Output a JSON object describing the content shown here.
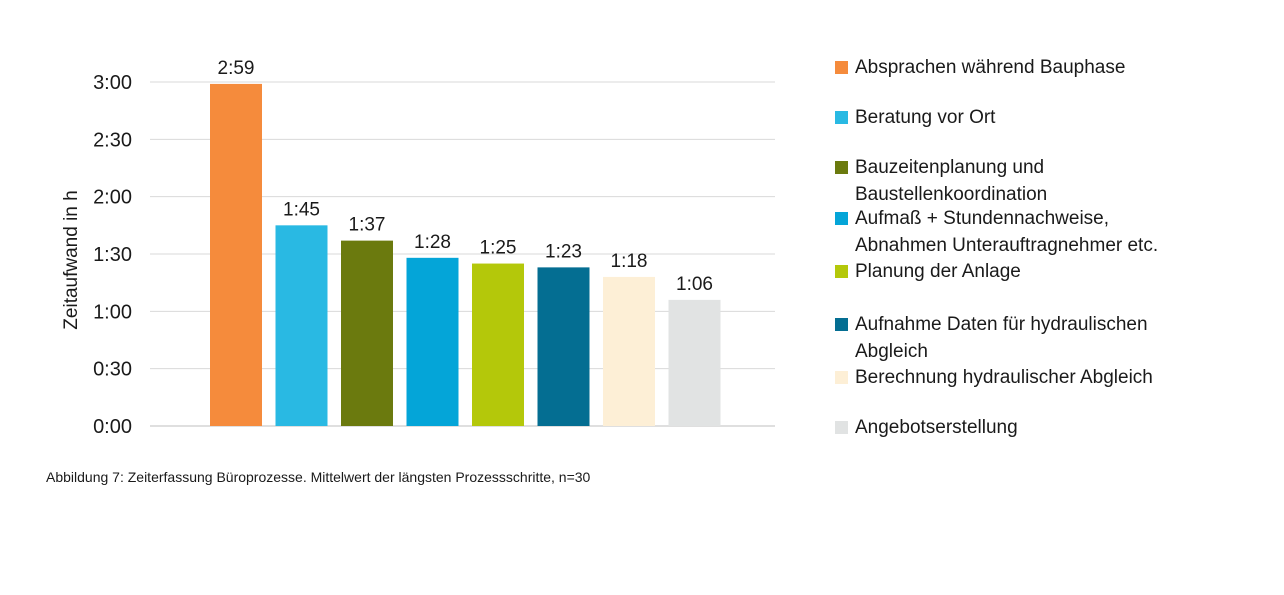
{
  "chart_data": {
    "type": "bar",
    "title": "",
    "ylabel": "Zeitaufwand in h",
    "xlabel": "",
    "unit": "minutes",
    "ylim": [
      0,
      180
    ],
    "yticks": [
      {
        "value": 0,
        "label": "0:00"
      },
      {
        "value": 30,
        "label": "0:30"
      },
      {
        "value": 60,
        "label": "1:00"
      },
      {
        "value": 90,
        "label": "1:30"
      },
      {
        "value": 120,
        "label": "2:00"
      },
      {
        "value": 150,
        "label": "2:30"
      },
      {
        "value": 180,
        "label": "3:00"
      }
    ],
    "grid": true,
    "legend_position": "right",
    "categories": [
      "Absprachen während Bauphase",
      "Beratung vor Ort",
      "Bauzeitenplanung und Baustellenkoordination",
      "Aufmaß + Stundennachweise, Abnahmen Unterauftragnehmer etc.",
      "Planung der Anlage",
      "Aufnahme Daten für hydraulischen Abgleich",
      "Berechnung hydraulischer Abgleich",
      "Angebotserstellung"
    ],
    "legend_lines": [
      [
        "Absprachen während Bauphase"
      ],
      [
        "Beratung vor Ort"
      ],
      [
        "Bauzeitenplanung und",
        "Baustellenkoordination"
      ],
      [
        "Aufmaß + Stundennachweise,",
        "Abnahmen Unterauftragnehmer etc."
      ],
      [
        "Planung der Anlage"
      ],
      [
        "Aufnahme Daten für hydraulischen",
        "Abgleich"
      ],
      [
        "Berechnung hydraulischer Abgleich"
      ],
      [
        "Angebotserstellung"
      ]
    ],
    "values": [
      179,
      105,
      97,
      88,
      85,
      83,
      78,
      66
    ],
    "value_labels": [
      "2:59",
      "1:45",
      "1:37",
      "1:28",
      "1:25",
      "1:23",
      "1:18",
      "1:06"
    ],
    "colors": [
      "#F58B3C",
      "#29B9E3",
      "#6B7A0E",
      "#04A5D8",
      "#B4C80A",
      "#046E92",
      "#FDEFD6",
      "#E1E3E3"
    ]
  },
  "caption": "Abbildung 7: Zeiterfassung Büroprozesse. Mittelwert der längsten Prozessschritte, n=30"
}
